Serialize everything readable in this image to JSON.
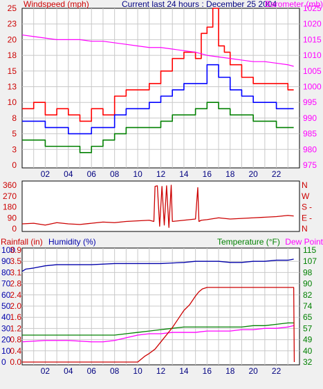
{
  "header": {
    "title": "Current last 24 hours : December 25 2004"
  },
  "chart_data": [
    {
      "type": "line",
      "panel": "wind-barometer",
      "title": "Current last 24 hours : December 25 2004",
      "left_axis_label": "Windspeed (mph)",
      "right_axis_label": "Barometer (mb)",
      "left_ticks": [
        "0",
        "3",
        "5",
        "8",
        "10",
        "13",
        "15",
        "18",
        "20",
        "23",
        "25"
      ],
      "left_range": [
        0,
        25
      ],
      "right_ticks": [
        "975",
        "980",
        "985",
        "990",
        "995",
        "1000",
        "1005",
        "1010",
        "1015",
        "1020",
        "1025"
      ],
      "right_range": [
        975,
        1025
      ],
      "x_ticks": [
        "02",
        "04",
        "06",
        "08",
        "10",
        "12",
        "14",
        "16",
        "18",
        "20",
        "22"
      ],
      "x_range": [
        0,
        24
      ],
      "grid": true,
      "colors": {
        "gust": "#ff0000",
        "avg": "#0000ff",
        "low": "#008000",
        "barometer": "#ff00ff"
      },
      "series": [
        {
          "key": "gust",
          "axis": "left",
          "step": true,
          "x": [
            0.0,
            1.0,
            2.0,
            3.0,
            4.0,
            5.0,
            6.0,
            7.0,
            8.0,
            9.0,
            10.0,
            11.0,
            12.0,
            13.0,
            14.0,
            15.0,
            15.5,
            16.0,
            16.5,
            17.0,
            17.5,
            18.0,
            19.0,
            20.0,
            21.0,
            22.0,
            23.0,
            23.5
          ],
          "values": [
            9,
            10,
            8,
            9,
            8,
            7,
            9,
            8,
            11,
            12,
            12,
            13,
            15,
            17,
            18,
            17,
            21,
            22,
            25,
            19,
            18,
            16,
            14,
            13,
            13,
            13,
            12,
            12
          ]
        },
        {
          "key": "avg",
          "axis": "left",
          "step": true,
          "x": [
            0.0,
            1.0,
            2.0,
            3.0,
            4.0,
            5.0,
            6.0,
            7.0,
            8.0,
            9.0,
            10.0,
            11.0,
            12.0,
            13.0,
            14.0,
            15.0,
            16.0,
            16.5,
            17.0,
            18.0,
            19.0,
            20.0,
            21.0,
            22.0,
            23.0,
            23.5
          ],
          "values": [
            7,
            7,
            6,
            6,
            5,
            5,
            6,
            6,
            8,
            9,
            9,
            10,
            11,
            12,
            13,
            13,
            16,
            16,
            14,
            12,
            11,
            10,
            10,
            9,
            9,
            9
          ]
        },
        {
          "key": "low",
          "axis": "left",
          "step": true,
          "x": [
            0.0,
            1.0,
            2.0,
            3.0,
            4.0,
            5.0,
            6.0,
            7.0,
            8.0,
            9.0,
            10.0,
            11.0,
            12.0,
            13.0,
            14.0,
            15.0,
            16.0,
            17.0,
            18.0,
            19.0,
            20.0,
            21.0,
            22.0,
            23.0,
            23.5
          ],
          "values": [
            4,
            4,
            3,
            3,
            3,
            2,
            3,
            4,
            5,
            6,
            6,
            6,
            7,
            8,
            8,
            9,
            10,
            9,
            8,
            8,
            7,
            7,
            6,
            6,
            6
          ]
        },
        {
          "key": "barometer",
          "axis": "right",
          "step": false,
          "x": [
            0.0,
            1.0,
            2.0,
            3.0,
            4.0,
            5.0,
            6.0,
            7.0,
            8.0,
            9.0,
            10.0,
            11.0,
            12.0,
            13.0,
            14.0,
            15.0,
            16.0,
            17.0,
            18.0,
            19.0,
            20.0,
            21.0,
            22.0,
            23.0,
            23.5
          ],
          "values": [
            1016.5,
            1016.0,
            1015.5,
            1015.0,
            1015.0,
            1015.0,
            1014.5,
            1014.5,
            1014.0,
            1013.5,
            1013.0,
            1012.5,
            1012.5,
            1012.0,
            1011.5,
            1011.0,
            1010.0,
            1009.5,
            1009.0,
            1008.5,
            1008.0,
            1008.0,
            1007.5,
            1007.0,
            1006.5
          ]
        }
      ]
    },
    {
      "type": "line",
      "panel": "wind-direction",
      "left_ticks": [
        "0",
        "90",
        "180",
        "270",
        "360"
      ],
      "left_range": [
        0,
        360
      ],
      "right_ticks": [
        "N",
        "E",
        "S",
        "W",
        "N"
      ],
      "right_tick_marks": [
        "",
        "-",
        "-",
        "",
        ""
      ],
      "x_range": [
        0,
        24
      ],
      "colors": {
        "direction": "#cc0000"
      },
      "series": [
        {
          "key": "direction",
          "x": [
            0.0,
            1.0,
            2.0,
            3.0,
            4.0,
            5.0,
            6.0,
            7.0,
            8.0,
            9.0,
            10.0,
            11.0,
            11.4,
            11.5,
            11.7,
            11.9,
            12.1,
            12.3,
            12.5,
            12.7,
            12.9,
            13.0,
            14.0,
            15.0,
            15.2,
            15.3,
            15.5,
            16.0,
            17.0,
            18.0,
            19.0,
            20.0,
            21.0,
            22.0,
            23.0,
            23.5
          ],
          "values": [
            40,
            45,
            30,
            50,
            40,
            35,
            45,
            55,
            50,
            60,
            65,
            70,
            60,
            350,
            355,
            20,
            350,
            30,
            355,
            10,
            360,
            60,
            70,
            80,
            340,
            60,
            70,
            75,
            90,
            80,
            85,
            90,
            95,
            100,
            110,
            105
          ]
        }
      ]
    },
    {
      "type": "line",
      "panel": "rain-humidity-temperature",
      "axis_labels": [
        "Rainfall (in)",
        "Humidity (%)",
        "Temperature (°F)",
        "Dew Point"
      ],
      "rain_ticks": [
        "0.0",
        "0.4",
        "0.8",
        "1.2",
        "1.6",
        "2.0",
        "2.4",
        "2.8",
        "3.1",
        "3.5",
        "3.9"
      ],
      "rain_range": [
        0,
        3.9
      ],
      "humidity_ticks": [
        "0",
        "10",
        "20",
        "30",
        "40",
        "50",
        "60",
        "70",
        "80",
        "90",
        "100"
      ],
      "humidity_range": [
        0,
        100
      ],
      "temperature_ticks": [
        "32",
        "40",
        "49",
        "57",
        "65",
        "74",
        "82",
        "90",
        "98",
        "107",
        "115"
      ],
      "temperature_range": [
        32,
        115
      ],
      "x_ticks": [
        "02",
        "04",
        "06",
        "08",
        "10",
        "12",
        "14",
        "16",
        "18",
        "20",
        "22"
      ],
      "x_range": [
        0,
        24
      ],
      "grid": true,
      "colors": {
        "rainfall": "#cc0000",
        "humidity": "#0000aa",
        "temperature": "#008000",
        "dewpoint": "#ff00ff",
        "temp_axis": "#008000",
        "rain_axis": "#cc0000",
        "humidity_axis": "#0000aa"
      },
      "series": [
        {
          "key": "humidity",
          "axis": "humidity",
          "x": [
            0.0,
            0.3,
            1.0,
            2.0,
            3.0,
            4.0,
            6.0,
            8.0,
            10.0,
            12.0,
            14.0,
            15.0,
            16.0,
            17.0,
            18.0,
            19.0,
            20.0,
            21.0,
            22.0,
            23.0,
            23.5
          ],
          "values": [
            81,
            83,
            84,
            86,
            87,
            87,
            87,
            88,
            88,
            88,
            89,
            90,
            90,
            90,
            89,
            89,
            90,
            90,
            91,
            91,
            92
          ]
        },
        {
          "key": "temperature",
          "axis": "temperature",
          "x": [
            0.0,
            2.0,
            4.0,
            6.0,
            8.0,
            9.0,
            10.0,
            11.0,
            12.0,
            13.0,
            14.0,
            15.0,
            16.0,
            17.0,
            18.0,
            19.0,
            20.0,
            21.0,
            22.0,
            23.0,
            23.5
          ],
          "values": [
            52,
            52,
            52,
            52,
            52,
            53,
            54,
            55,
            56,
            57,
            58,
            58,
            58,
            58,
            58,
            58,
            59,
            59,
            60,
            61,
            61
          ]
        },
        {
          "key": "dewpoint",
          "axis": "temperature",
          "x": [
            0.0,
            2.0,
            4.0,
            6.0,
            7.0,
            8.0,
            9.0,
            10.0,
            11.0,
            12.0,
            13.0,
            14.0,
            15.0,
            16.0,
            17.0,
            18.0,
            19.0,
            20.0,
            21.0,
            22.0,
            23.0,
            23.5
          ],
          "values": [
            47,
            48,
            48,
            47,
            47,
            48,
            50,
            52,
            53,
            53,
            54,
            54,
            54,
            55,
            55,
            55,
            56,
            56,
            57,
            57,
            58,
            59
          ]
        },
        {
          "key": "rainfall",
          "axis": "rain",
          "x": [
            0.0,
            10.0,
            10.3,
            10.6,
            11.0,
            11.5,
            12.0,
            12.5,
            13.0,
            13.5,
            14.0,
            14.5,
            15.0,
            15.3,
            15.6,
            16.0,
            17.0,
            18.0,
            20.0,
            22.0,
            23.5,
            23.55
          ],
          "values": [
            0.0,
            0.0,
            0.1,
            0.2,
            0.3,
            0.45,
            0.7,
            0.95,
            1.2,
            1.5,
            1.8,
            2.0,
            2.3,
            2.45,
            2.55,
            2.6,
            2.6,
            2.6,
            2.6,
            2.6,
            2.6,
            0.0
          ]
        }
      ]
    }
  ]
}
